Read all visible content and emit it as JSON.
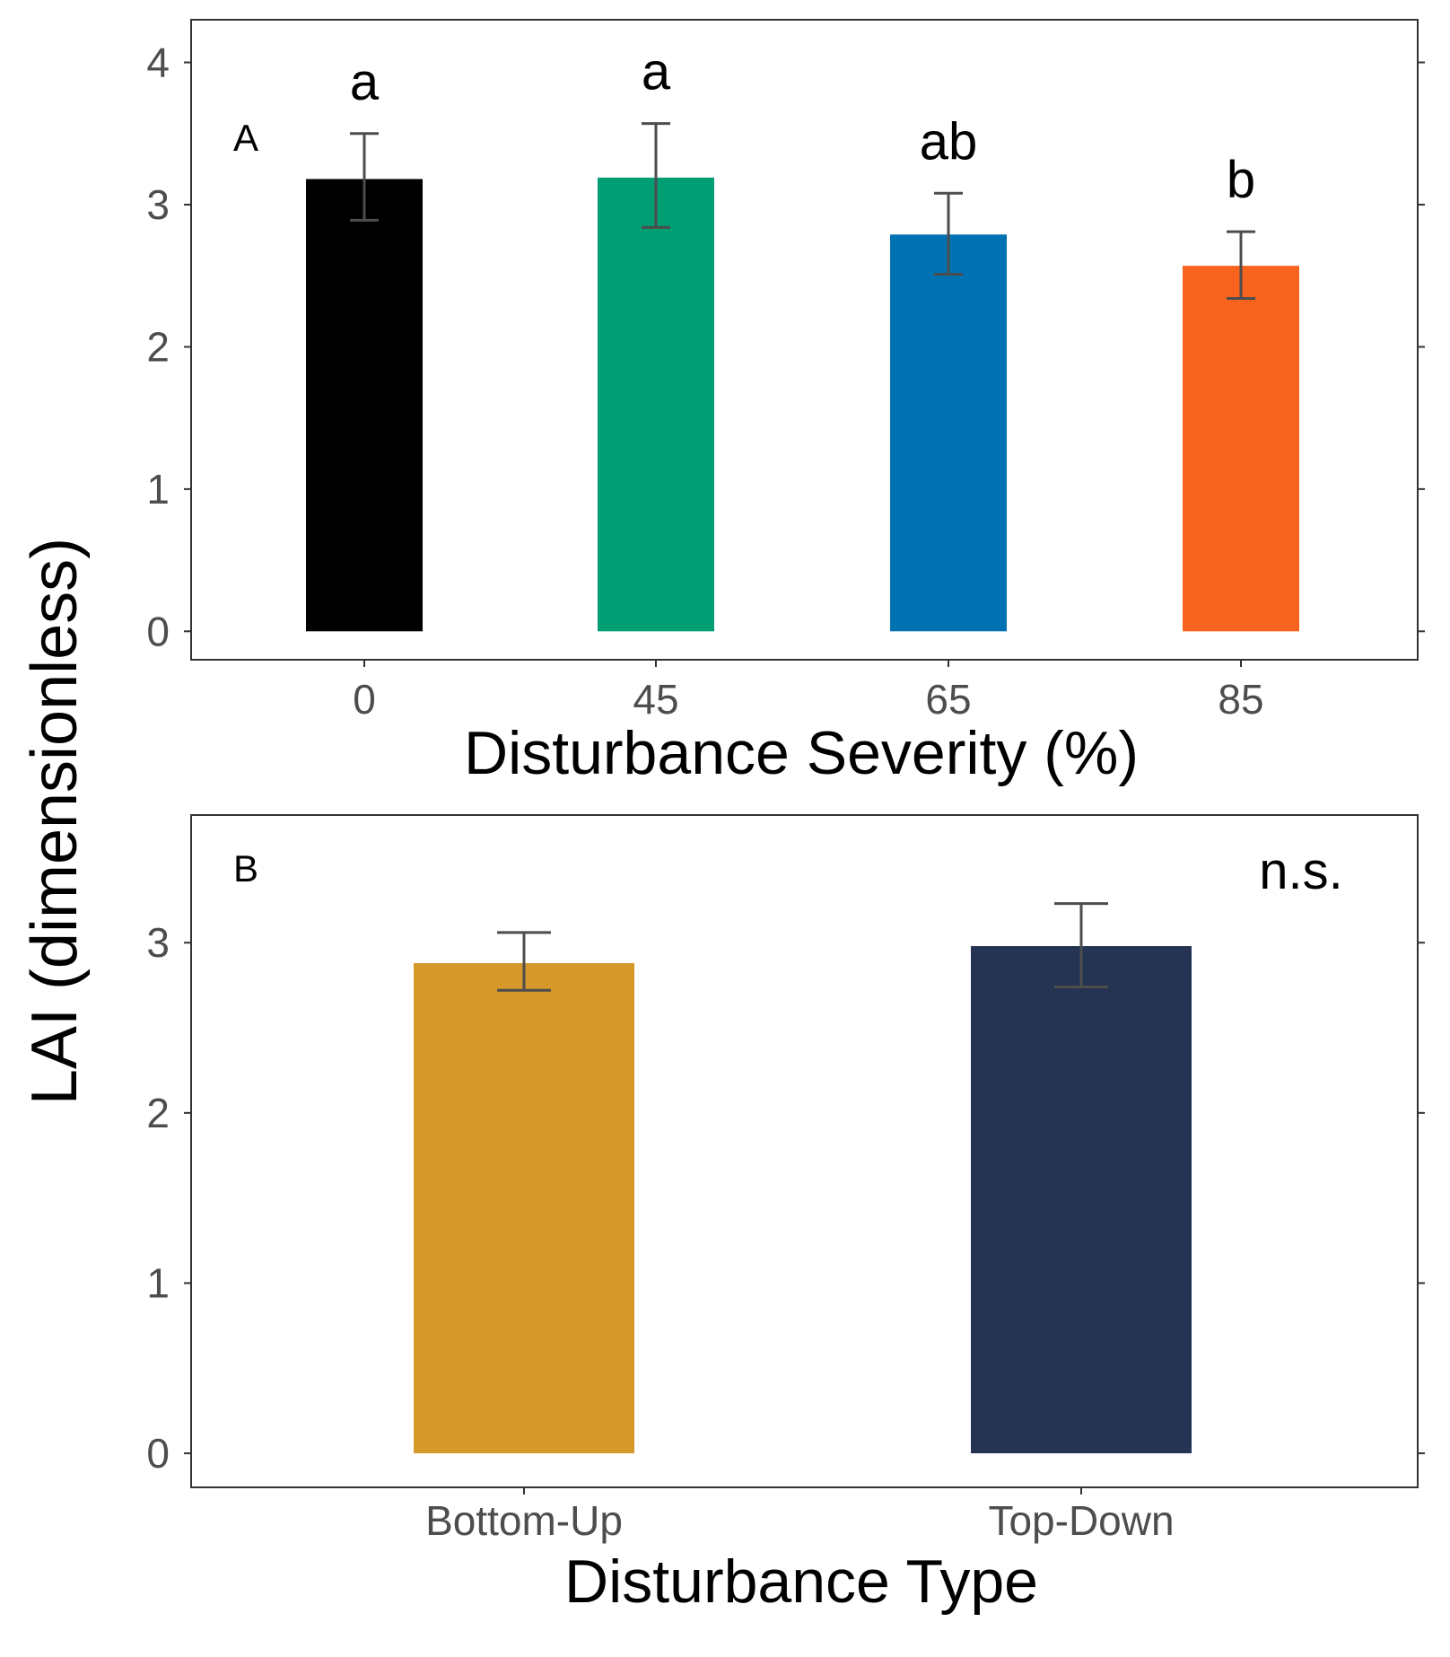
{
  "y_axis_label": "LAI (dimensionless)",
  "chart_data": [
    {
      "type": "bar",
      "panel_label": "A",
      "xlabel": "Disturbance Severity (%)",
      "ylabel": "LAI (dimensionless)",
      "categories": [
        "0",
        "45",
        "65",
        "85"
      ],
      "values": [
        3.18,
        3.19,
        2.79,
        2.57
      ],
      "error_lower": [
        2.89,
        2.84,
        2.51,
        2.34
      ],
      "error_upper": [
        3.5,
        3.57,
        3.08,
        2.81
      ],
      "significance_letters": [
        "a",
        "a",
        "ab",
        "b"
      ],
      "colors": [
        "#000000",
        "#009E73",
        "#0072B2",
        "#F8631D"
      ],
      "ylim": [
        -0.2,
        4.3
      ],
      "yticks": [
        0,
        1,
        2,
        3,
        4
      ],
      "ytick_labels": [
        "0",
        "1",
        "2",
        "3",
        "4"
      ]
    },
    {
      "type": "bar",
      "panel_label": "B",
      "xlabel": "Disturbance Type",
      "ylabel": "LAI (dimensionless)",
      "categories": [
        "Bottom-Up",
        "Top-Down"
      ],
      "values": [
        2.88,
        2.98
      ],
      "error_lower": [
        2.72,
        2.74
      ],
      "error_upper": [
        3.06,
        3.23
      ],
      "annotation": "n.s.",
      "colors": [
        "#D4982B",
        "#253452"
      ],
      "ylim": [
        -0.2,
        3.75
      ],
      "yticks": [
        0,
        1,
        2,
        3
      ],
      "ytick_labels": [
        "0",
        "1",
        "2",
        "3"
      ]
    }
  ]
}
